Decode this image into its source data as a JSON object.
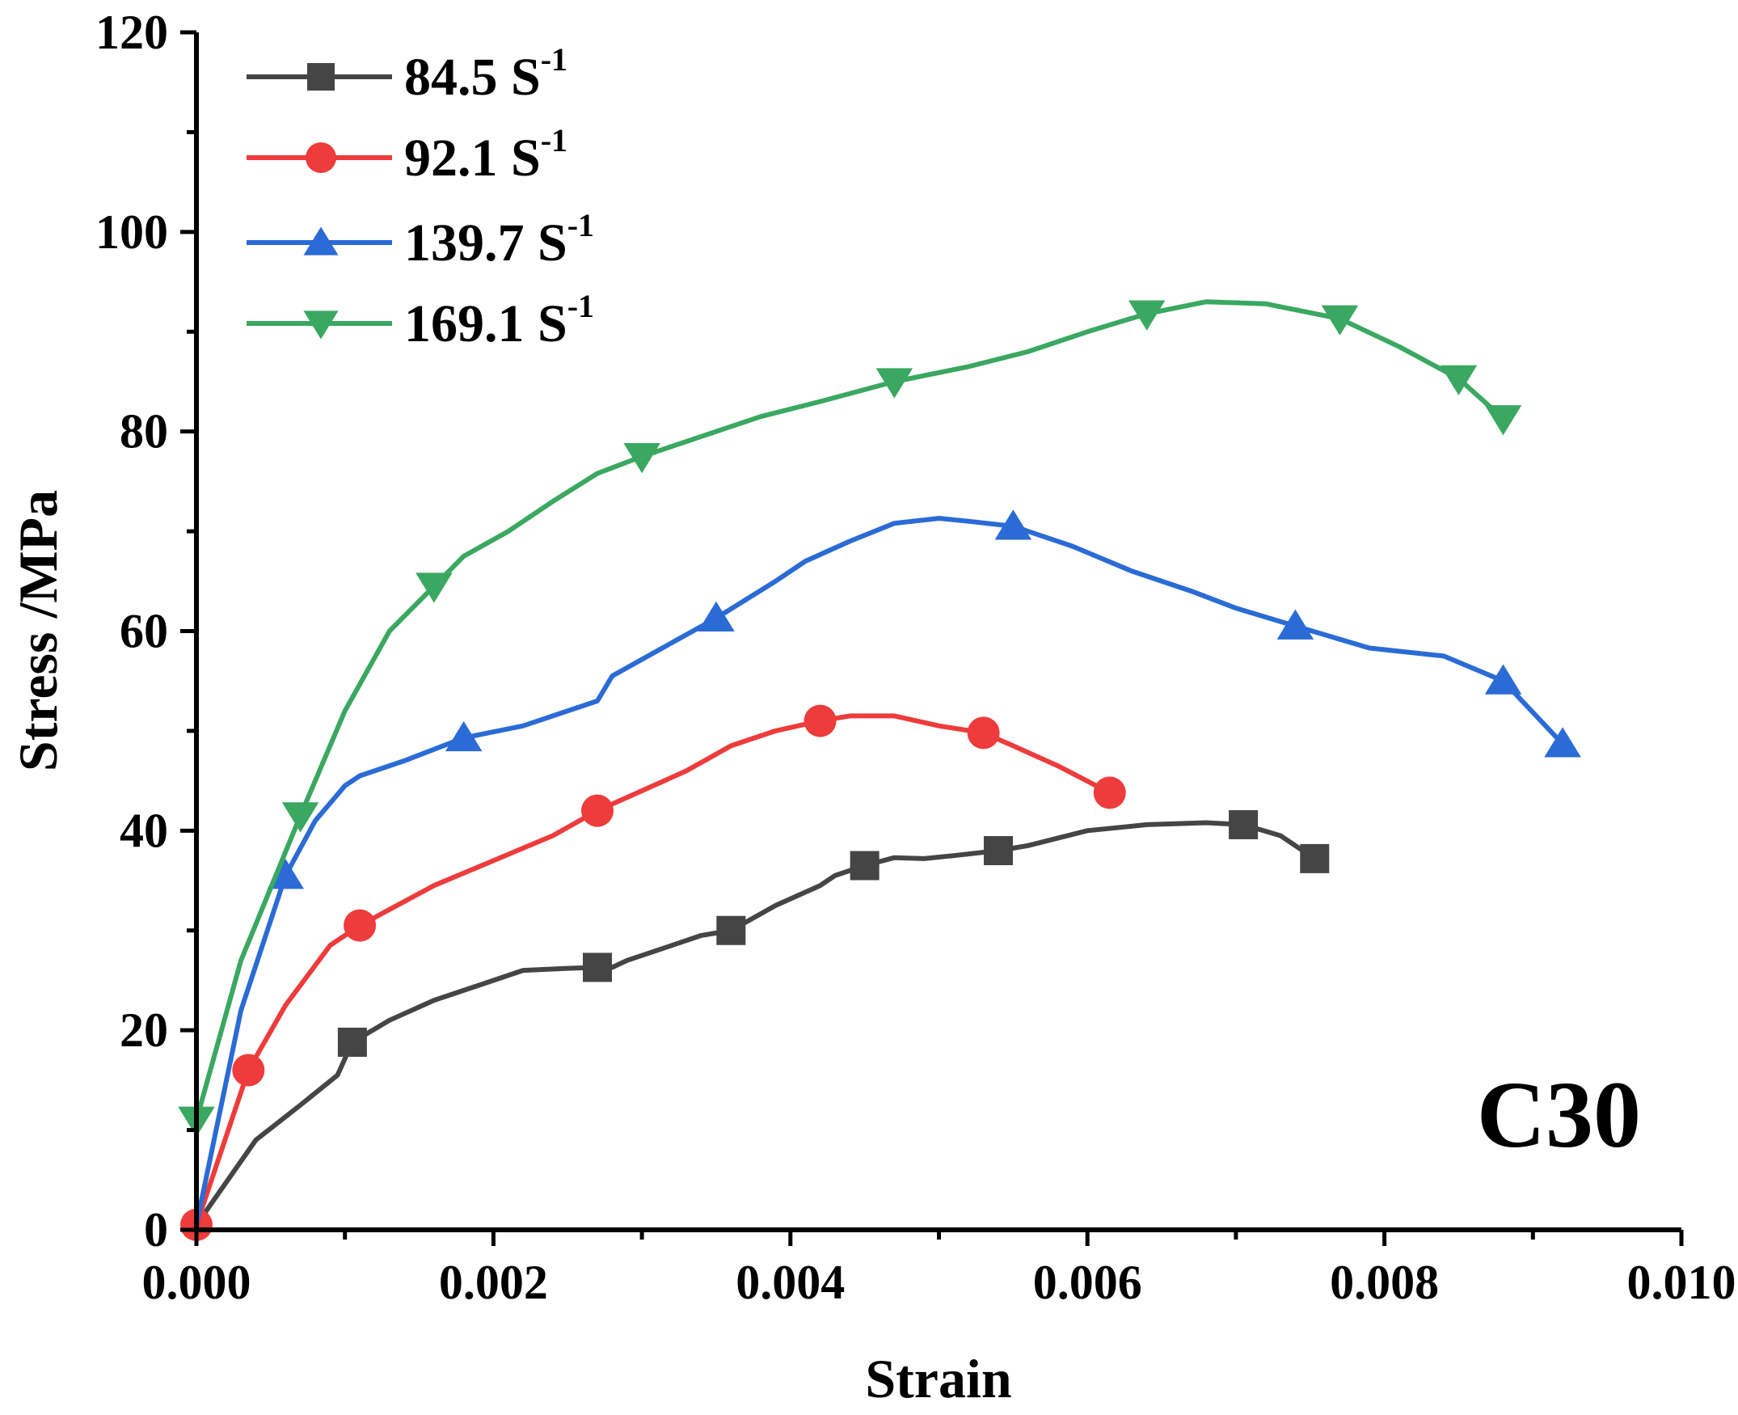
{
  "chart_data": {
    "type": "line",
    "xlabel": "Strain",
    "ylabel": "Stress /MPa",
    "xlim": [
      0,
      0.01
    ],
    "ylim": [
      0,
      120
    ],
    "x_ticks": [
      0,
      0.002,
      0.004,
      0.006,
      0.008,
      0.01
    ],
    "x_tick_labels": [
      "0.000",
      "0.002",
      "0.004",
      "0.006",
      "0.008",
      "0.010"
    ],
    "y_ticks": [
      0,
      20,
      40,
      60,
      80,
      100,
      120
    ],
    "y_tick_labels": [
      "0",
      "20",
      "40",
      "60",
      "80",
      "100",
      "120"
    ],
    "annotation": "C30",
    "legend_position": "top-left",
    "series": [
      {
        "name": "84.5 S",
        "name_sup": "-1",
        "color": "#454545",
        "marker": "square",
        "x": [
          0.0,
          0.0004,
          0.0007,
          0.00095,
          0.00105,
          0.0013,
          0.0016,
          0.002,
          0.0022,
          0.0025,
          0.0027,
          0.0028,
          0.0029,
          0.0032,
          0.0034,
          0.0036,
          0.0039,
          0.0042,
          0.0043,
          0.0045,
          0.0047,
          0.0049,
          0.0051,
          0.0054,
          0.0056,
          0.006,
          0.0064,
          0.0068,
          0.00705,
          0.0073,
          0.00753
        ],
        "y": [
          0.5,
          9.0,
          12.5,
          15.5,
          18.8,
          21.0,
          23.0,
          25.0,
          26.0,
          26.2,
          26.3,
          26.3,
          27.0,
          28.5,
          29.5,
          30.0,
          32.5,
          34.5,
          35.5,
          36.5,
          37.3,
          37.2,
          37.5,
          38.0,
          38.5,
          40.0,
          40.6,
          40.8,
          40.6,
          39.5,
          37.2
        ],
        "marker_x": [
          0.00105,
          0.0027,
          0.0036,
          0.0045,
          0.0054,
          0.00705,
          0.00753
        ],
        "marker_y": [
          18.8,
          26.3,
          30.0,
          36.5,
          38.0,
          40.6,
          37.2
        ]
      },
      {
        "name": "92.1 S",
        "name_sup": "-1",
        "color": "#ee3b3b",
        "marker": "circle",
        "x": [
          0.0,
          0.00035,
          0.0006,
          0.0009,
          0.0011,
          0.0016,
          0.002,
          0.0024,
          0.0027,
          0.003,
          0.0033,
          0.0036,
          0.0039,
          0.0042,
          0.0044,
          0.0047,
          0.005,
          0.0053,
          0.0055,
          0.0058,
          0.00615
        ],
        "y": [
          0.5,
          16.0,
          22.5,
          28.5,
          30.5,
          34.5,
          37.0,
          39.5,
          42.0,
          44.0,
          46.0,
          48.5,
          50.0,
          51.0,
          51.5,
          51.5,
          50.5,
          49.8,
          48.5,
          46.5,
          43.8
        ],
        "marker_x": [
          0.0,
          0.00035,
          0.0011,
          0.0027,
          0.0042,
          0.0053,
          0.00615
        ],
        "marker_y": [
          0.5,
          16.0,
          30.5,
          42.0,
          51.0,
          49.8,
          43.8
        ]
      },
      {
        "name": "139.7 S",
        "name_sup": "-1",
        "color": "#2a6bd6",
        "marker": "triangle-up",
        "x": [
          0.0,
          0.0003,
          0.0006,
          0.0008,
          0.001,
          0.0011,
          0.0014,
          0.0018,
          0.0022,
          0.0027,
          0.0028,
          0.0031,
          0.0035,
          0.0039,
          0.0041,
          0.0044,
          0.0047,
          0.005,
          0.0052,
          0.0055,
          0.0059,
          0.0063,
          0.0067,
          0.007,
          0.0074,
          0.0079,
          0.0084,
          0.0088,
          0.0092
        ],
        "y": [
          0.5,
          22.0,
          35.5,
          41.0,
          44.5,
          45.5,
          47.0,
          49.3,
          50.5,
          53.0,
          55.5,
          58.0,
          61.3,
          65.0,
          67.0,
          69.0,
          70.8,
          71.3,
          71.0,
          70.5,
          68.5,
          66.0,
          64.0,
          62.3,
          60.5,
          58.3,
          57.5,
          55.0,
          48.7
        ],
        "marker_x": [
          0.0006,
          0.0018,
          0.0035,
          0.0055,
          0.0074,
          0.0088,
          0.0092
        ],
        "marker_y": [
          35.5,
          49.3,
          61.3,
          70.5,
          60.5,
          55.0,
          48.7
        ]
      },
      {
        "name": "169.1 S",
        "name_sup": "-1",
        "color": "#3aa860",
        "marker": "triangle-down",
        "x": [
          0.0,
          0.0003,
          0.0007,
          0.001,
          0.0013,
          0.0016,
          0.0018,
          0.0021,
          0.0024,
          0.0027,
          0.003,
          0.0034,
          0.0038,
          0.0042,
          0.0047,
          0.0052,
          0.0056,
          0.006,
          0.0064,
          0.0068,
          0.0072,
          0.0077,
          0.0081,
          0.0085,
          0.0088
        ],
        "y": [
          11.0,
          27.0,
          41.5,
          52.0,
          60.0,
          64.5,
          67.5,
          70.0,
          73.0,
          75.8,
          77.5,
          79.5,
          81.5,
          83.0,
          85.0,
          86.5,
          88.0,
          90.0,
          91.8,
          93.0,
          92.8,
          91.3,
          88.5,
          85.3,
          81.3
        ],
        "marker_x": [
          0.0,
          0.0007,
          0.0016,
          0.003,
          0.0047,
          0.0064,
          0.0077,
          0.0085,
          0.0088
        ],
        "marker_y": [
          11.0,
          41.5,
          64.5,
          77.5,
          85.0,
          91.8,
          91.3,
          85.3,
          81.3
        ]
      }
    ]
  }
}
